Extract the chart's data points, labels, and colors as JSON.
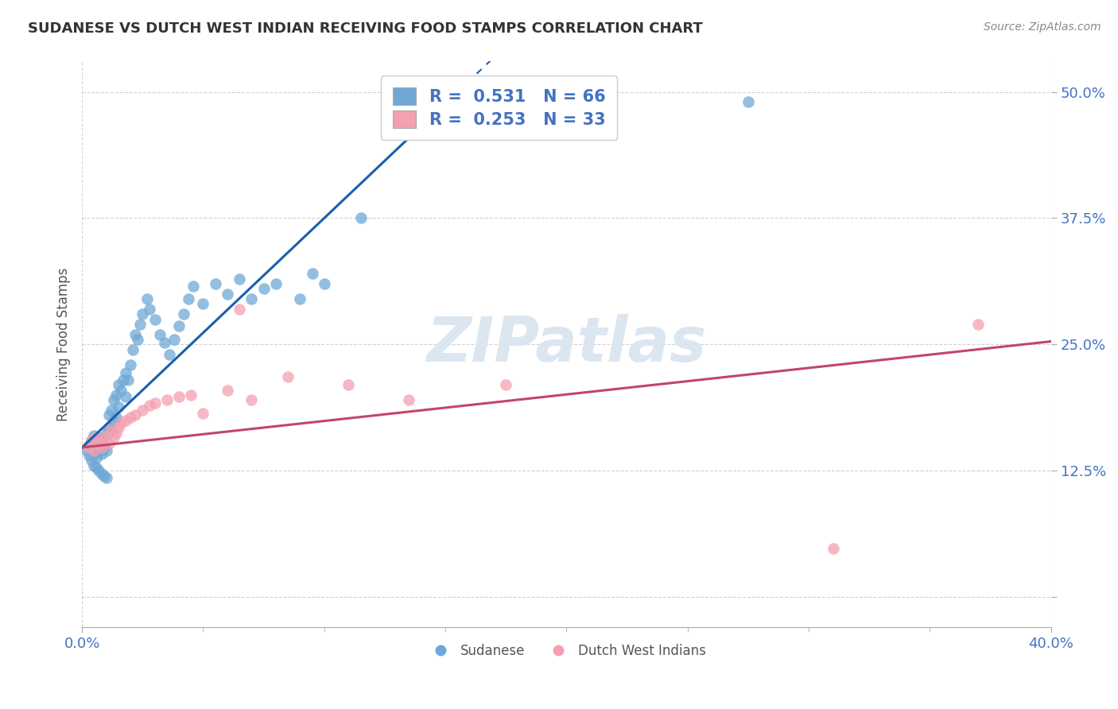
{
  "title": "SUDANESE VS DUTCH WEST INDIAN RECEIVING FOOD STAMPS CORRELATION CHART",
  "source": "Source: ZipAtlas.com",
  "ylabel": "Receiving Food Stamps",
  "y_ticks": [
    0.0,
    0.125,
    0.25,
    0.375,
    0.5
  ],
  "y_tick_labels": [
    "",
    "12.5%",
    "25.0%",
    "37.5%",
    "50.0%"
  ],
  "x_lim": [
    0.0,
    0.4
  ],
  "y_lim": [
    -0.03,
    0.53
  ],
  "blue_R": 0.531,
  "blue_N": 66,
  "pink_R": 0.253,
  "pink_N": 33,
  "blue_color": "#6fa8d6",
  "pink_color": "#f4a0b0",
  "blue_line_color": "#1a5fad",
  "pink_line_color": "#c44569",
  "background_color": "#ffffff",
  "watermark": "ZIPatlas",
  "watermark_color": "#dce6f0",
  "blue_line_x0": 0.0,
  "blue_line_y0": 0.148,
  "blue_line_x1": 0.155,
  "blue_line_y1": 0.5,
  "pink_line_x0": 0.0,
  "pink_line_y0": 0.148,
  "pink_line_x1": 0.4,
  "pink_line_y1": 0.253,
  "blue_scatter_x": [
    0.002,
    0.003,
    0.003,
    0.004,
    0.004,
    0.005,
    0.005,
    0.005,
    0.006,
    0.006,
    0.006,
    0.007,
    0.007,
    0.007,
    0.008,
    0.008,
    0.008,
    0.009,
    0.009,
    0.01,
    0.01,
    0.01,
    0.011,
    0.011,
    0.012,
    0.012,
    0.013,
    0.013,
    0.014,
    0.014,
    0.015,
    0.015,
    0.016,
    0.017,
    0.018,
    0.018,
    0.019,
    0.02,
    0.021,
    0.022,
    0.023,
    0.024,
    0.025,
    0.027,
    0.028,
    0.03,
    0.032,
    0.034,
    0.036,
    0.038,
    0.04,
    0.042,
    0.044,
    0.046,
    0.05,
    0.055,
    0.06,
    0.065,
    0.07,
    0.075,
    0.08,
    0.09,
    0.095,
    0.1,
    0.115,
    0.275
  ],
  "blue_scatter_y": [
    0.145,
    0.14,
    0.15,
    0.135,
    0.155,
    0.13,
    0.148,
    0.16,
    0.128,
    0.138,
    0.152,
    0.125,
    0.143,
    0.158,
    0.122,
    0.142,
    0.156,
    0.12,
    0.148,
    0.118,
    0.145,
    0.162,
    0.168,
    0.18,
    0.165,
    0.185,
    0.175,
    0.195,
    0.178,
    0.2,
    0.188,
    0.21,
    0.205,
    0.215,
    0.198,
    0.222,
    0.215,
    0.23,
    0.245,
    0.26,
    0.255,
    0.27,
    0.28,
    0.295,
    0.285,
    0.275,
    0.26,
    0.252,
    0.24,
    0.255,
    0.268,
    0.28,
    0.295,
    0.308,
    0.29,
    0.31,
    0.3,
    0.315,
    0.295,
    0.305,
    0.31,
    0.295,
    0.32,
    0.31,
    0.375,
    0.49
  ],
  "pink_scatter_x": [
    0.003,
    0.004,
    0.005,
    0.006,
    0.007,
    0.008,
    0.009,
    0.01,
    0.011,
    0.012,
    0.013,
    0.014,
    0.015,
    0.016,
    0.018,
    0.02,
    0.022,
    0.025,
    0.028,
    0.03,
    0.035,
    0.04,
    0.045,
    0.05,
    0.06,
    0.065,
    0.07,
    0.085,
    0.11,
    0.135,
    0.175,
    0.31,
    0.37
  ],
  "pink_scatter_y": [
    0.148,
    0.155,
    0.145,
    0.158,
    0.152,
    0.148,
    0.155,
    0.16,
    0.152,
    0.165,
    0.158,
    0.162,
    0.168,
    0.172,
    0.175,
    0.178,
    0.18,
    0.185,
    0.19,
    0.192,
    0.195,
    0.198,
    0.2,
    0.182,
    0.205,
    0.285,
    0.195,
    0.218,
    0.21,
    0.195,
    0.21,
    0.048,
    0.27
  ]
}
